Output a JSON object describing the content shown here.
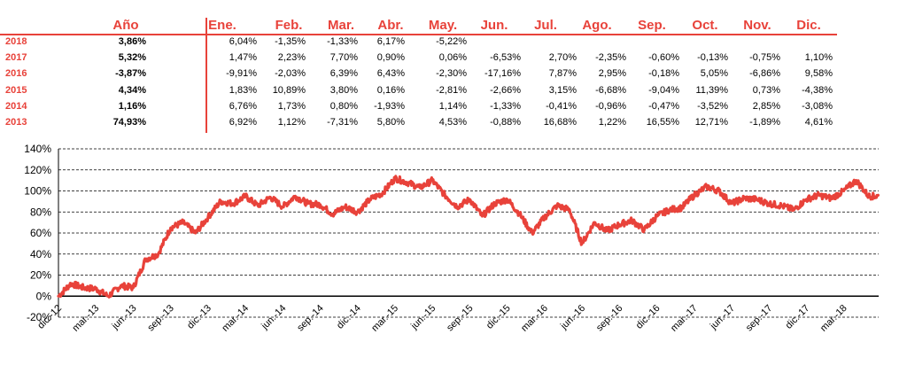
{
  "table": {
    "headers": [
      "Año",
      "Ene.",
      "Feb.",
      "Mar.",
      "Abr.",
      "May.",
      "Jun.",
      "Jul.",
      "Ago.",
      "Sep.",
      "Oct.",
      "Nov.",
      "Dic."
    ],
    "rows": [
      {
        "year": "2018",
        "annual": "3,86%",
        "months": [
          "6,04%",
          "-1,35%",
          "-1,33%",
          "6,17%",
          "-5,22%",
          "",
          "",
          "",
          "",
          "",
          "",
          ""
        ]
      },
      {
        "year": "2017",
        "annual": "5,32%",
        "months": [
          "1,47%",
          "2,23%",
          "7,70%",
          "0,90%",
          "0,06%",
          "-6,53%",
          "2,70%",
          "-2,35%",
          "-0,60%",
          "-0,13%",
          "-0,75%",
          "1,10%"
        ]
      },
      {
        "year": "2016",
        "annual": "-3,87%",
        "months": [
          "-9,91%",
          "-2,03%",
          "6,39%",
          "6,43%",
          "-2,30%",
          "-17,16%",
          "7,87%",
          "2,95%",
          "-0,18%",
          "5,05%",
          "-6,86%",
          "9,58%"
        ]
      },
      {
        "year": "2015",
        "annual": "4,34%",
        "months": [
          "1,83%",
          "10,89%",
          "3,80%",
          "0,16%",
          "-2,81%",
          "-2,66%",
          "3,15%",
          "-6,68%",
          "-9,04%",
          "11,39%",
          "0,73%",
          "-4,38%"
        ]
      },
      {
        "year": "2014",
        "annual": "1,16%",
        "months": [
          "6,76%",
          "1,73%",
          "0,80%",
          "-1,93%",
          "1,14%",
          "-1,33%",
          "-0,41%",
          "-0,96%",
          "-0,47%",
          "-3,52%",
          "2,85%",
          "-3,08%"
        ]
      },
      {
        "year": "2013",
        "annual": "74,93%",
        "months": [
          "6,92%",
          "1,12%",
          "-7,31%",
          "5,80%",
          "4,53%",
          "-0,88%",
          "16,68%",
          "1,22%",
          "16,55%",
          "12,71%",
          "-1,89%",
          "4,61%"
        ]
      }
    ]
  },
  "chart_data": {
    "type": "line",
    "x_tick_labels": [
      "dic.-12",
      "mar.-13",
      "jun.-13",
      "sep.-13",
      "dic.-13",
      "mar.-14",
      "jun.-14",
      "sep.-14",
      "dic.-14",
      "mar.-15",
      "jun.-15",
      "sep.-15",
      "dic.-15",
      "mar.-16",
      "jun.-16",
      "sep.-16",
      "dic.-16",
      "mar.-17",
      "jun.-17",
      "sep.-17",
      "dic.-17",
      "mar.-18"
    ],
    "y_tick_labels": [
      "-20%",
      "0%",
      "20%",
      "40%",
      "60%",
      "80%",
      "100%",
      "120%",
      "140%"
    ],
    "ylim": [
      -20,
      140
    ],
    "grid": "horizontal-dashed",
    "series": [
      {
        "color": "#e8423a",
        "x": [
          "2012-12",
          "2013-01",
          "2013-02",
          "2013-03",
          "2013-04",
          "2013-05",
          "2013-06",
          "2013-07",
          "2013-08",
          "2013-09",
          "2013-10",
          "2013-11",
          "2013-12",
          "2014-01",
          "2014-02",
          "2014-03",
          "2014-04",
          "2014-05",
          "2014-06",
          "2014-07",
          "2014-08",
          "2014-09",
          "2014-10",
          "2014-11",
          "2014-12",
          "2015-01",
          "2015-02",
          "2015-03",
          "2015-04",
          "2015-05",
          "2015-06",
          "2015-07",
          "2015-08",
          "2015-09",
          "2015-10",
          "2015-11",
          "2015-12",
          "2016-01",
          "2016-02",
          "2016-03",
          "2016-04",
          "2016-05",
          "2016-06",
          "2016-07",
          "2016-08",
          "2016-09",
          "2016-10",
          "2016-11",
          "2016-12",
          "2017-01",
          "2017-02",
          "2017-03",
          "2017-04",
          "2017-05",
          "2017-06",
          "2017-07",
          "2017-08",
          "2017-09",
          "2017-10",
          "2017-11",
          "2017-12",
          "2018-01",
          "2018-02",
          "2018-03",
          "2018-04",
          "2018-05"
        ],
        "y": [
          0,
          12,
          8,
          7,
          0,
          10,
          8,
          35,
          40,
          65,
          70,
          60,
          75,
          90,
          88,
          95,
          86,
          94,
          85,
          95,
          88,
          87,
          78,
          85,
          80,
          92,
          98,
          112,
          108,
          103,
          110,
          96,
          85,
          92,
          76,
          88,
          92,
          78,
          60,
          75,
          86,
          82,
          50,
          70,
          62,
          68,
          72,
          63,
          76,
          82,
          84,
          96,
          104,
          100,
          88,
          93,
          92,
          88,
          86,
          82,
          92,
          96,
          93,
          100,
          110,
          95
        ]
      }
    ]
  }
}
